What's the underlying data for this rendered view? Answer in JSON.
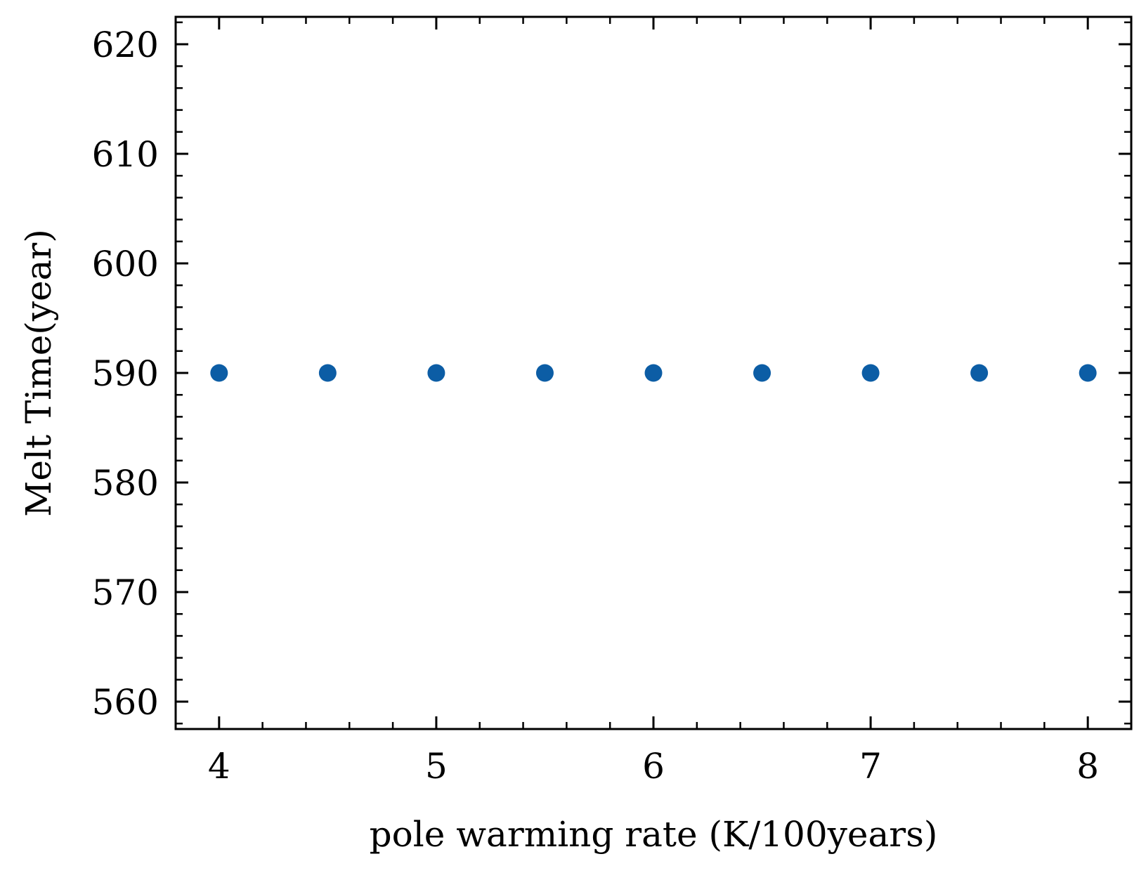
{
  "chart_data": {
    "type": "scatter",
    "title": "",
    "xlabel": "pole warming rate (K/100years)",
    "ylabel": "Melt Time(year)",
    "xlim": [
      3.8,
      8.2
    ],
    "ylim": [
      557.5,
      622.5
    ],
    "xticks": [
      4,
      5,
      6,
      7,
      8
    ],
    "xtick_labels": [
      "4",
      "5",
      "6",
      "7",
      "8"
    ],
    "yticks": [
      560,
      570,
      580,
      590,
      600,
      610,
      620
    ],
    "ytick_labels": [
      "560",
      "570",
      "580",
      "590",
      "600",
      "610",
      "620"
    ],
    "grid": false,
    "marker_color": "#0c5da5",
    "series": [
      {
        "x": [
          4.0,
          4.5,
          5.0,
          5.5,
          6.0,
          6.5,
          7.0,
          7.5,
          8.0
        ],
        "y": [
          590,
          590,
          590,
          590,
          590,
          590,
          590,
          590,
          590
        ]
      }
    ]
  }
}
